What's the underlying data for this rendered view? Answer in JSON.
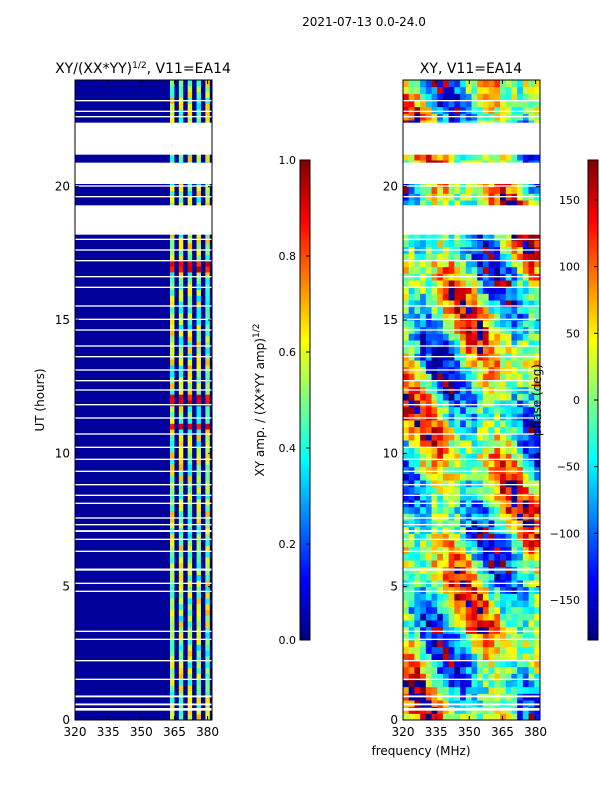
{
  "figure": {
    "suptitle": "2021-07-13 0.0-24.0",
    "xlabel": "frequency (MHz)"
  },
  "chart_data": [
    {
      "type": "heatmap",
      "title": "XY/(XX*YY)",
      "title_sup": "1/2",
      "title_suffix": ", V11=EA14",
      "xlabel": "",
      "ylabel": "UT (hours)",
      "xlim": [
        320,
        382
      ],
      "ylim": [
        0,
        24
      ],
      "xticks": [
        "320",
        "335",
        "350",
        "365",
        "380"
      ],
      "xtick_values": [
        320,
        335,
        350,
        365,
        380
      ],
      "yticks": [
        "0",
        "5",
        "10",
        "15",
        "20"
      ],
      "ytick_values": [
        0,
        5,
        10,
        15,
        20
      ],
      "colorbar": {
        "label": "XY amp. / (XX*YY amp)",
        "label_sup": "1/2",
        "range": [
          0,
          1
        ],
        "ticks": [
          "0.0",
          "0.2",
          "0.4",
          "0.6",
          "0.8",
          "1.0"
        ],
        "tick_values": [
          0,
          0.2,
          0.4,
          0.6,
          0.8,
          1.0
        ]
      },
      "flagged_hours": [
        [
          0.35,
          0.45
        ],
        [
          0.55,
          0.62
        ],
        [
          0.85,
          0.92
        ],
        [
          1.5,
          1.55
        ],
        [
          2.2,
          2.25
        ],
        [
          3.0,
          3.05
        ],
        [
          3.3,
          3.35
        ],
        [
          4.8,
          4.85
        ],
        [
          5.1,
          5.15
        ],
        [
          5.6,
          5.68
        ],
        [
          6.3,
          6.35
        ],
        [
          6.75,
          6.8
        ],
        [
          7.05,
          7.12
        ],
        [
          7.3,
          7.35
        ],
        [
          7.55,
          7.6
        ],
        [
          8.1,
          8.15
        ],
        [
          8.4,
          8.45
        ],
        [
          8.8,
          8.85
        ],
        [
          9.3,
          9.35
        ],
        [
          9.75,
          9.8
        ],
        [
          10.2,
          10.25
        ],
        [
          10.7,
          10.75
        ],
        [
          11.3,
          11.35
        ],
        [
          11.8,
          11.85
        ],
        [
          12.35,
          12.4
        ],
        [
          12.7,
          12.75
        ],
        [
          13.1,
          13.15
        ],
        [
          13.6,
          13.65
        ],
        [
          14.0,
          14.05
        ],
        [
          14.6,
          14.65
        ],
        [
          15.0,
          15.05
        ],
        [
          15.5,
          15.55
        ],
        [
          16.2,
          16.25
        ],
        [
          16.6,
          16.65
        ],
        [
          17.2,
          17.25
        ],
        [
          17.6,
          17.65
        ],
        [
          18.0,
          18.05
        ],
        [
          18.2,
          19.3
        ],
        [
          19.6,
          19.65
        ],
        [
          20.0,
          20.05
        ],
        [
          20.1,
          20.9
        ],
        [
          21.2,
          22.4
        ],
        [
          22.6,
          22.65
        ],
        [
          22.8,
          22.85
        ],
        [
          23.2,
          23.25
        ]
      ],
      "bright_bands_mhz": [
        [
          363,
          365
        ],
        [
          367,
          369
        ],
        [
          371,
          373
        ],
        [
          375,
          377
        ],
        [
          379,
          381
        ]
      ],
      "peak_hours": [
        [
          16.9,
          17.05
        ],
        [
          11.9,
          12.05
        ],
        [
          11.0,
          11.1
        ]
      ]
    },
    {
      "type": "heatmap",
      "title": "XY, V11=EA14",
      "xlabel": "",
      "ylabel": "",
      "xlim": [
        320,
        382
      ],
      "ylim": [
        0,
        24
      ],
      "xticks": [
        "320",
        "335",
        "350",
        "365",
        "380"
      ],
      "xtick_values": [
        320,
        335,
        350,
        365,
        380
      ],
      "yticks": [
        "0",
        "5",
        "10",
        "15",
        "20"
      ],
      "ytick_values": [
        0,
        5,
        10,
        15,
        20
      ],
      "colorbar": {
        "label": "phase (deg)",
        "range": [
          -180,
          180
        ],
        "ticks": [
          "−150",
          "−100",
          "−50",
          "0",
          "50",
          "100",
          "150"
        ],
        "tick_values": [
          -150,
          -100,
          -50,
          0,
          50,
          100,
          150
        ]
      },
      "flagged_hours": [
        [
          0.35,
          0.45
        ],
        [
          0.55,
          0.62
        ],
        [
          0.85,
          0.92
        ],
        [
          1.5,
          1.55
        ],
        [
          2.2,
          2.25
        ],
        [
          3.0,
          3.05
        ],
        [
          3.3,
          3.35
        ],
        [
          4.8,
          4.85
        ],
        [
          5.1,
          5.15
        ],
        [
          5.6,
          5.68
        ],
        [
          6.3,
          6.35
        ],
        [
          6.75,
          6.8
        ],
        [
          7.05,
          7.12
        ],
        [
          7.3,
          7.35
        ],
        [
          7.55,
          7.6
        ],
        [
          8.1,
          8.15
        ],
        [
          8.4,
          8.45
        ],
        [
          8.8,
          8.85
        ],
        [
          9.3,
          9.35
        ],
        [
          9.75,
          9.8
        ],
        [
          10.2,
          10.25
        ],
        [
          10.7,
          10.75
        ],
        [
          11.3,
          11.35
        ],
        [
          11.8,
          11.85
        ],
        [
          12.35,
          12.4
        ],
        [
          12.7,
          12.75
        ],
        [
          13.1,
          13.15
        ],
        [
          13.6,
          13.65
        ],
        [
          14.0,
          14.05
        ],
        [
          14.6,
          14.65
        ],
        [
          15.0,
          15.05
        ],
        [
          15.5,
          15.55
        ],
        [
          16.2,
          16.25
        ],
        [
          16.6,
          16.65
        ],
        [
          17.2,
          17.25
        ],
        [
          17.6,
          17.65
        ],
        [
          18.0,
          18.05
        ],
        [
          18.2,
          19.3
        ],
        [
          19.6,
          19.65
        ],
        [
          20.0,
          20.05
        ],
        [
          20.1,
          20.9
        ],
        [
          21.2,
          22.4
        ],
        [
          22.6,
          22.65
        ],
        [
          22.8,
          22.85
        ],
        [
          23.2,
          23.25
        ]
      ]
    }
  ]
}
